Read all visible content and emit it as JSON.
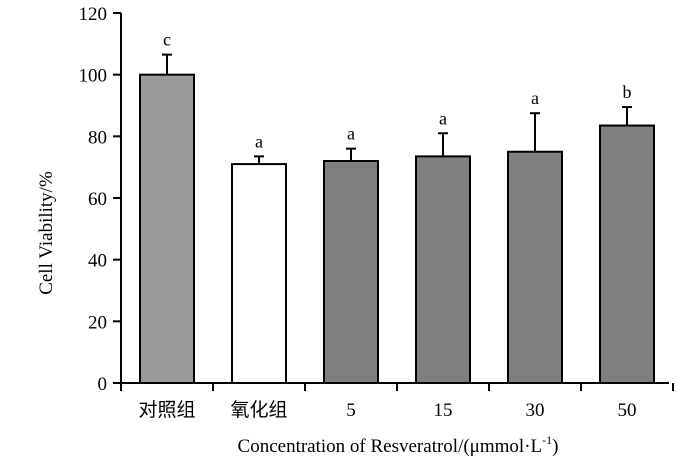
{
  "chart_data": {
    "type": "bar",
    "categories": [
      "对照组",
      "氧化组",
      "5",
      "15",
      "30",
      "50"
    ],
    "values": [
      100,
      71,
      72,
      73.5,
      75,
      83.5
    ],
    "errors": [
      6.5,
      2.5,
      4,
      7.5,
      12.5,
      6
    ],
    "significance": [
      "c",
      "a",
      "a",
      "a",
      "a",
      "b"
    ],
    "bar_colors": [
      "#9a9a9a",
      "#ffffff",
      "#7f7f7f",
      "#7f7f7f",
      "#7f7f7f",
      "#7f7f7f"
    ],
    "ylabel": "Cell Viability/%",
    "xlabel_main": "Concentration of Resveratrol/(μmmol·L",
    "xlabel_sup": "-1",
    "xlabel_end": ")",
    "ylim": [
      0,
      120
    ],
    "yticks": [
      0,
      20,
      40,
      60,
      80,
      100,
      120
    ],
    "grid": false,
    "legend": "none"
  }
}
